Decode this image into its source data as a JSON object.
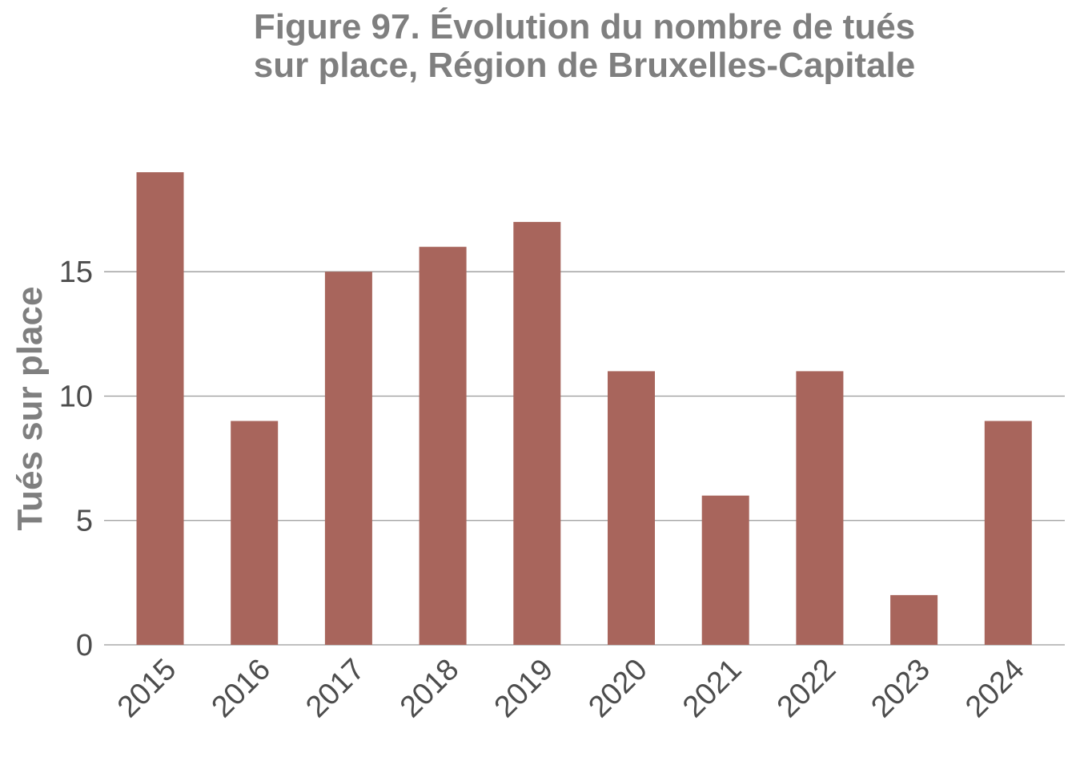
{
  "chart_data": {
    "type": "bar",
    "title_lines": [
      "Figure 97. Évolution du nombre de tués",
      "sur place, Région de Bruxelles-Capitale"
    ],
    "xlabel": "",
    "ylabel": "Tués sur place",
    "categories": [
      "2015",
      "2016",
      "2017",
      "2018",
      "2019",
      "2020",
      "2021",
      "2022",
      "2023",
      "2024"
    ],
    "values": [
      19,
      9,
      15,
      16,
      17,
      11,
      6,
      11,
      2,
      9
    ],
    "ylim": [
      0,
      19
    ],
    "yticks": [
      0,
      5,
      10,
      15
    ],
    "grid": true,
    "bar_color": "#a8655c",
    "grid_color": "#9a9a9a",
    "tick_color": "#4d4d4d",
    "title_color": "#7f7f7f"
  }
}
